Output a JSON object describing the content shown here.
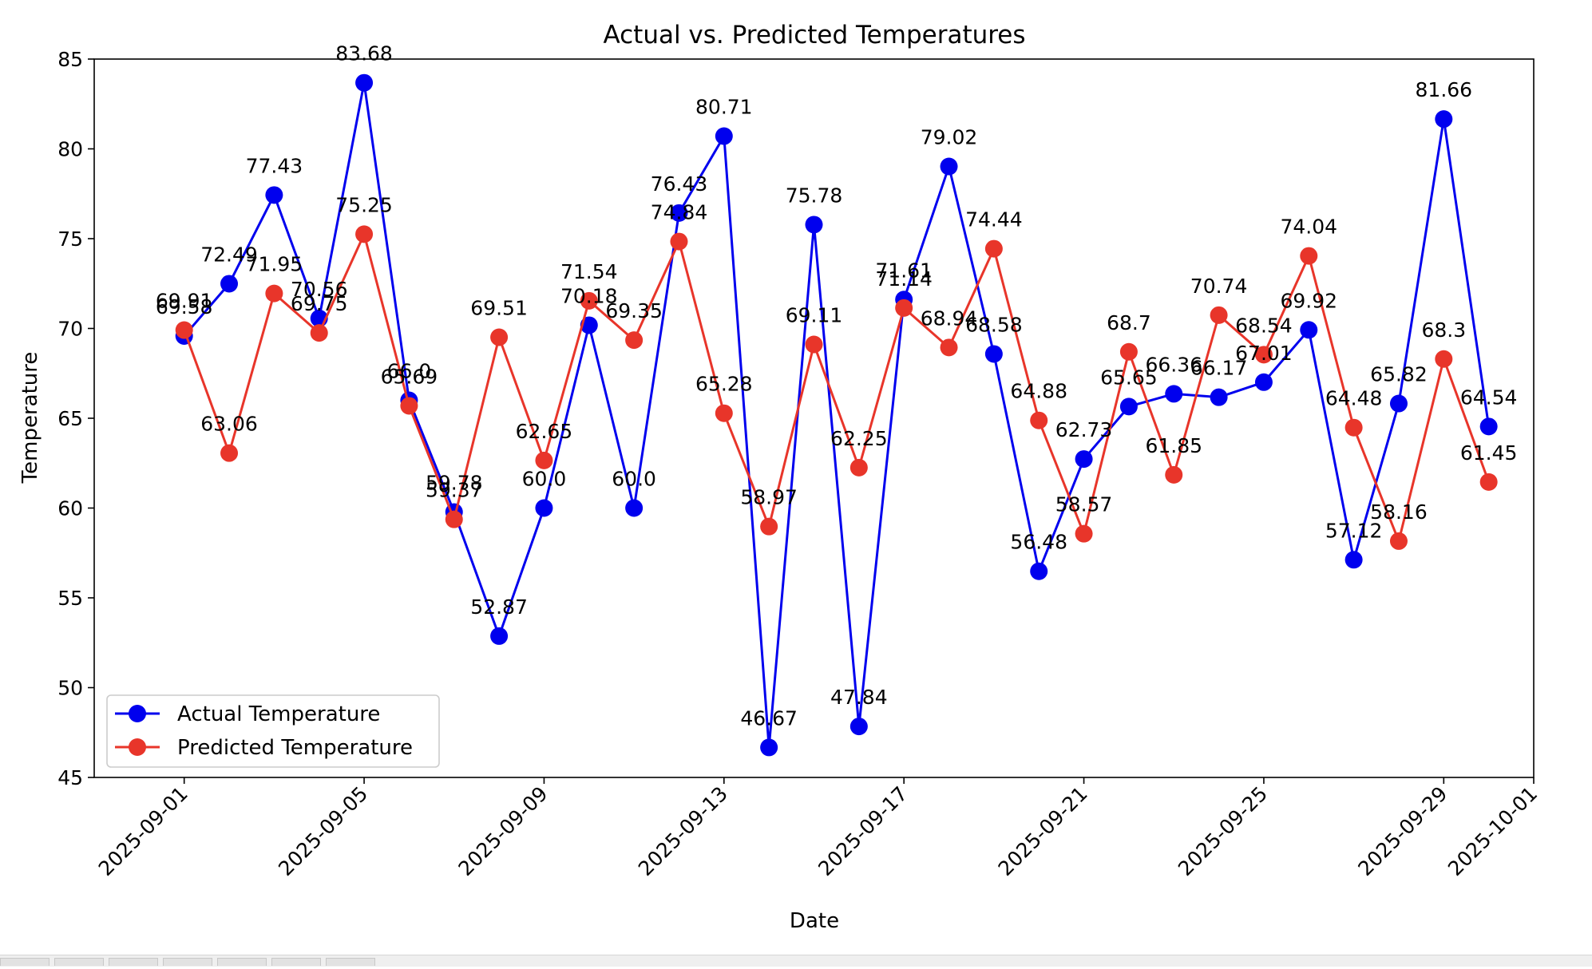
{
  "chart_data": {
    "type": "line",
    "title": "Actual vs. Predicted Temperatures",
    "xlabel": "Date",
    "ylabel": "Temperature",
    "x": [
      "2025-09-01",
      "2025-09-02",
      "2025-09-03",
      "2025-09-04",
      "2025-09-05",
      "2025-09-06",
      "2025-09-07",
      "2025-09-08",
      "2025-09-09",
      "2025-09-10",
      "2025-09-11",
      "2025-09-12",
      "2025-09-13",
      "2025-09-14",
      "2025-09-15",
      "2025-09-16",
      "2025-09-17",
      "2025-09-18",
      "2025-09-19",
      "2025-09-20",
      "2025-09-21",
      "2025-09-22",
      "2025-09-23",
      "2025-09-24",
      "2025-09-25",
      "2025-09-26",
      "2025-09-27",
      "2025-09-28",
      "2025-09-29",
      "2025-09-30"
    ],
    "xlim": [
      "2025-08-30",
      "2025-10-01"
    ],
    "ylim": [
      45,
      85
    ],
    "x_ticks": [
      "2025-09-01",
      "2025-09-05",
      "2025-09-09",
      "2025-09-13",
      "2025-09-17",
      "2025-09-21",
      "2025-09-25",
      "2025-09-29",
      "2025-10-01"
    ],
    "y_ticks": [
      45,
      50,
      55,
      60,
      65,
      70,
      75,
      80,
      85
    ],
    "grid": false,
    "legend_position": "lower-left",
    "series": [
      {
        "name": "Actual Temperature",
        "color": "#0000ee",
        "marker": "circle",
        "values": [
          69.58,
          72.49,
          77.43,
          70.56,
          83.68,
          66.0,
          59.78,
          52.87,
          60.0,
          70.18,
          60.0,
          76.43,
          80.71,
          46.67,
          75.78,
          47.84,
          71.61,
          79.02,
          68.58,
          56.48,
          62.73,
          65.65,
          66.36,
          66.17,
          67.01,
          69.92,
          57.12,
          65.82,
          81.66,
          64.54
        ],
        "labels": [
          "69.58",
          "72.49",
          "77.43",
          "70.56",
          "83.68",
          "66.0",
          "59.78",
          "52.87",
          "60.0",
          "70.18",
          "60.0",
          "76.43",
          "80.71",
          "46.67",
          "75.78",
          "47.84",
          "71.61",
          "79.02",
          "68.58",
          "56.48",
          "62.73",
          "65.65",
          "66.36",
          "66.17",
          "67.01",
          "69.92",
          "57.12",
          "65.82",
          "81.66",
          "64.54"
        ]
      },
      {
        "name": "Predicted Temperature",
        "color": "#e8352a",
        "marker": "circle",
        "values": [
          69.91,
          63.06,
          71.95,
          69.75,
          75.25,
          65.69,
          59.37,
          69.51,
          62.65,
          71.54,
          69.35,
          74.84,
          65.28,
          58.97,
          69.11,
          62.25,
          71.14,
          68.94,
          74.44,
          64.88,
          58.57,
          68.7,
          61.85,
          70.74,
          68.54,
          74.04,
          64.48,
          58.16,
          68.3,
          61.45
        ],
        "labels": [
          "69.91",
          "63.06",
          "71.95",
          "69.75",
          "75.25",
          "65.69",
          "59.37",
          "69.51",
          "62.65",
          "71.54",
          "69.35",
          "74.84",
          "65.28",
          "58.97",
          "69.11",
          "62.25",
          "71.14",
          "68.94",
          "74.44",
          "64.88",
          "58.57",
          "68.7",
          "61.85",
          "70.74",
          "68.54",
          "74.04",
          "64.48",
          "58.16",
          "68.3",
          "61.45"
        ]
      }
    ]
  }
}
